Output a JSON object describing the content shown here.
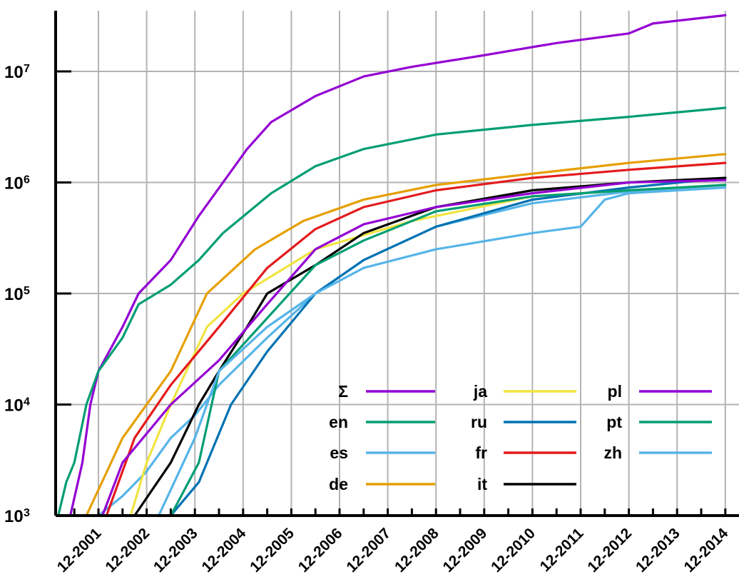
{
  "chart_data": {
    "type": "line",
    "title": "",
    "xlabel": "",
    "ylabel": "",
    "y_scale": "log",
    "ylim": [
      1000,
      40000000
    ],
    "xlim": [
      "2001-01",
      "2014-12"
    ],
    "grid": true,
    "legend_position": "bottom-right",
    "x_ticks": [
      "12-2001",
      "12-2002",
      "12-2003",
      "12-2004",
      "12-2005",
      "12-2006",
      "12-2007",
      "12-2008",
      "12-2009",
      "12-2010",
      "12-2011",
      "12-2012",
      "12-2013",
      "12-2014"
    ],
    "y_ticks": [
      {
        "base": "10",
        "exp": "3",
        "value": 1000
      },
      {
        "base": "10",
        "exp": "4",
        "value": 10000
      },
      {
        "base": "10",
        "exp": "5",
        "value": 100000
      },
      {
        "base": "10",
        "exp": "6",
        "value": 1000000
      },
      {
        "base": "10",
        "exp": "7",
        "value": 10000000
      }
    ],
    "series": [
      {
        "name": "Σ",
        "color": "#9400d3",
        "points": [
          [
            "2001-05",
            1000
          ],
          [
            "2001-08",
            3000
          ],
          [
            "2001-10",
            10000
          ],
          [
            "2001-12",
            20000
          ],
          [
            "2002-06",
            50000
          ],
          [
            "2002-10",
            100000
          ],
          [
            "2003-06",
            200000
          ],
          [
            "2004-01",
            500000
          ],
          [
            "2004-07",
            1000000
          ],
          [
            "2005-01",
            2000000
          ],
          [
            "2005-07",
            3500000
          ],
          [
            "2006-06",
            6000000
          ],
          [
            "2007-06",
            9000000
          ],
          [
            "2008-06",
            11000000
          ],
          [
            "2009-12",
            14000000
          ],
          [
            "2011-06",
            18000000
          ],
          [
            "2012-12",
            22000000
          ],
          [
            "2013-06",
            27000000
          ],
          [
            "2014-12",
            32000000
          ]
        ]
      },
      {
        "name": "en",
        "color": "#009e73",
        "points": [
          [
            "2001-02",
            1000
          ],
          [
            "2001-04",
            2000
          ],
          [
            "2001-06",
            3000
          ],
          [
            "2001-09",
            10000
          ],
          [
            "2001-12",
            20000
          ],
          [
            "2002-06",
            40000
          ],
          [
            "2002-10",
            80000
          ],
          [
            "2003-06",
            120000
          ],
          [
            "2004-01",
            200000
          ],
          [
            "2004-07",
            350000
          ],
          [
            "2005-07",
            800000
          ],
          [
            "2006-06",
            1400000
          ],
          [
            "2007-06",
            2000000
          ],
          [
            "2008-12",
            2700000
          ],
          [
            "2010-12",
            3300000
          ],
          [
            "2012-12",
            3900000
          ],
          [
            "2014-12",
            4700000
          ]
        ]
      },
      {
        "name": "es",
        "color": "#56b4e9",
        "points": [
          [
            "2001-12",
            1000
          ],
          [
            "2002-06",
            1500
          ],
          [
            "2002-12",
            2500
          ],
          [
            "2003-06",
            5000
          ],
          [
            "2003-12",
            8000
          ],
          [
            "2004-06",
            15000
          ],
          [
            "2005-06",
            40000
          ],
          [
            "2006-06",
            100000
          ],
          [
            "2007-06",
            200000
          ],
          [
            "2008-12",
            400000
          ],
          [
            "2010-12",
            650000
          ],
          [
            "2012-12",
            830000
          ],
          [
            "2014-12",
            950000
          ]
        ]
      },
      {
        "name": "de",
        "color": "#e69f00",
        "points": [
          [
            "2001-09",
            1000
          ],
          [
            "2002-06",
            5000
          ],
          [
            "2003-06",
            20000
          ],
          [
            "2004-03",
            100000
          ],
          [
            "2005-03",
            250000
          ],
          [
            "2006-03",
            450000
          ],
          [
            "2007-06",
            700000
          ],
          [
            "2008-12",
            950000
          ],
          [
            "2010-12",
            1200000
          ],
          [
            "2012-12",
            1500000
          ],
          [
            "2014-12",
            1800000
          ]
        ]
      },
      {
        "name": "ja",
        "color": "#f0e442",
        "points": [
          [
            "2002-08",
            1000
          ],
          [
            "2002-12",
            3000
          ],
          [
            "2003-06",
            10000
          ],
          [
            "2004-03",
            50000
          ],
          [
            "2004-12",
            100000
          ],
          [
            "2006-06",
            250000
          ],
          [
            "2008-06",
            450000
          ],
          [
            "2010-12",
            750000
          ],
          [
            "2012-12",
            850000
          ],
          [
            "2014-12",
            950000
          ]
        ]
      },
      {
        "name": "ru",
        "color": "#0072b2",
        "points": [
          [
            "2003-06",
            1000
          ],
          [
            "2004-01",
            2000
          ],
          [
            "2004-09",
            10000
          ],
          [
            "2005-06",
            30000
          ],
          [
            "2006-06",
            100000
          ],
          [
            "2007-06",
            200000
          ],
          [
            "2008-12",
            400000
          ],
          [
            "2010-12",
            700000
          ],
          [
            "2012-12",
            900000
          ],
          [
            "2014-12",
            1100000
          ]
        ]
      },
      {
        "name": "fr",
        "color": "#e41a1c",
        "points": [
          [
            "2002-02",
            1000
          ],
          [
            "2002-09",
            5000
          ],
          [
            "2003-06",
            15000
          ],
          [
            "2004-06",
            50000
          ],
          [
            "2005-06",
            170000
          ],
          [
            "2006-06",
            380000
          ],
          [
            "2007-06",
            600000
          ],
          [
            "2008-12",
            850000
          ],
          [
            "2010-12",
            1100000
          ],
          [
            "2012-12",
            1300000
          ],
          [
            "2014-12",
            1500000
          ]
        ]
      },
      {
        "name": "it",
        "color": "#000000",
        "points": [
          [
            "2002-09",
            1000
          ],
          [
            "2003-06",
            3000
          ],
          [
            "2004-01",
            10000
          ],
          [
            "2004-06",
            20000
          ],
          [
            "2005-01",
            50000
          ],
          [
            "2005-06",
            100000
          ],
          [
            "2006-06",
            180000
          ],
          [
            "2007-06",
            350000
          ],
          [
            "2008-12",
            600000
          ],
          [
            "2010-12",
            850000
          ],
          [
            "2012-12",
            1000000
          ],
          [
            "2014-12",
            1100000
          ]
        ]
      },
      {
        "name": "pl",
        "color": "#9400d3",
        "points": [
          [
            "2002-01",
            1000
          ],
          [
            "2002-06",
            3000
          ],
          [
            "2003-06",
            10000
          ],
          [
            "2004-06",
            25000
          ],
          [
            "2005-06",
            80000
          ],
          [
            "2006-06",
            250000
          ],
          [
            "2007-06",
            420000
          ],
          [
            "2008-12",
            600000
          ],
          [
            "2010-12",
            800000
          ],
          [
            "2012-12",
            1000000
          ],
          [
            "2014-12",
            1050000
          ]
        ]
      },
      {
        "name": "pt",
        "color": "#009e73",
        "points": [
          [
            "2003-06",
            1000
          ],
          [
            "2004-01",
            3000
          ],
          [
            "2004-06",
            20000
          ],
          [
            "2005-06",
            60000
          ],
          [
            "2006-06",
            180000
          ],
          [
            "2007-06",
            300000
          ],
          [
            "2008-12",
            550000
          ],
          [
            "2010-12",
            750000
          ],
          [
            "2012-12",
            850000
          ],
          [
            "2014-12",
            950000
          ]
        ]
      },
      {
        "name": "zh",
        "color": "#56b4e9",
        "points": [
          [
            "2003-03",
            1000
          ],
          [
            "2003-12",
            5000
          ],
          [
            "2004-06",
            20000
          ],
          [
            "2005-06",
            50000
          ],
          [
            "2006-06",
            100000
          ],
          [
            "2007-06",
            170000
          ],
          [
            "2008-12",
            250000
          ],
          [
            "2010-12",
            350000
          ],
          [
            "2011-12",
            400000
          ],
          [
            "2012-06",
            700000
          ],
          [
            "2012-12",
            800000
          ],
          [
            "2014-12",
            900000
          ]
        ]
      }
    ]
  }
}
